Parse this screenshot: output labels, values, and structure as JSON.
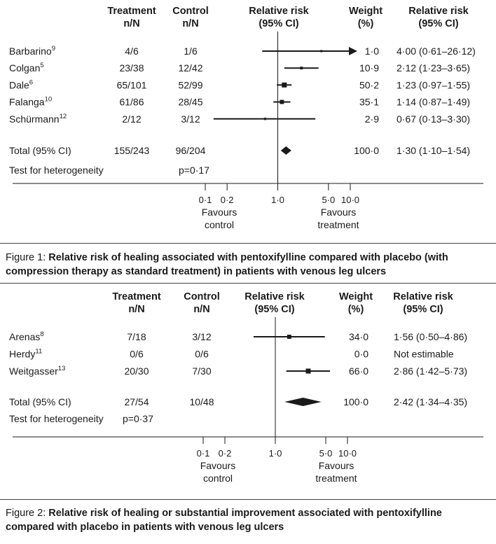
{
  "columns": {
    "study": "",
    "treatment": [
      "Treatment",
      "n/N"
    ],
    "control": [
      "Control",
      "n/N"
    ],
    "rr_axis": [
      "Relative risk",
      "(95% CI)"
    ],
    "weight": [
      "Weight",
      "(%)"
    ],
    "rr_text": [
      "Relative risk",
      "(95% CI)"
    ]
  },
  "chart_data": [
    {
      "type": "forest",
      "x_scale": "log",
      "xlim": [
        0.1,
        10.0
      ],
      "x_ticks": [
        {
          "value": 0.1,
          "label": "0·1"
        },
        {
          "value": 0.2,
          "label": "0·2"
        },
        {
          "value": 1.0,
          "label": "1·0"
        },
        {
          "value": 5.0,
          "label": "5·0"
        },
        {
          "value": 10.0,
          "label": "10·0"
        }
      ],
      "favours_left": [
        "Favours",
        "control"
      ],
      "favours_right": [
        "Favours",
        "treatment"
      ],
      "studies": [
        {
          "name": "Barbarino",
          "ref": "9",
          "treatment": "4/6",
          "control": "1/6",
          "rr": 4.0,
          "lo": 0.61,
          "hi": 26.12,
          "arrow": true,
          "weight": "1·0",
          "rr_text": "4·00 (0·61–26·12)"
        },
        {
          "name": "Colgan",
          "ref": "5",
          "treatment": "23/38",
          "control": "12/42",
          "rr": 2.12,
          "lo": 1.23,
          "hi": 3.65,
          "weight": "10·9",
          "rr_text": "2·12 (1·23–3·65)"
        },
        {
          "name": "Dale",
          "ref": "6",
          "treatment": "65/101",
          "control": "52/99",
          "rr": 1.23,
          "lo": 0.97,
          "hi": 1.55,
          "weight": "50·2",
          "rr_text": "1·23 (0·97–1·55)"
        },
        {
          "name": "Falanga",
          "ref": "10",
          "treatment": "61/86",
          "control": "28/45",
          "rr": 1.14,
          "lo": 0.87,
          "hi": 1.49,
          "weight": "35·1",
          "rr_text": "1·14 (0·87–1·49)"
        },
        {
          "name": "Schürmann",
          "ref": "12",
          "treatment": "2/12",
          "control": "3/12",
          "rr": 0.67,
          "lo": 0.13,
          "hi": 3.3,
          "weight": "2·9",
          "rr_text": "0·67 (0·13–3·30)"
        }
      ],
      "total": {
        "name": "Total (95% CI)",
        "treatment": "155/243",
        "control": "96/204",
        "rr": 1.3,
        "lo": 1.1,
        "hi": 1.54,
        "weight": "100·0",
        "rr_text": "1·30 (1·10–1·54)"
      },
      "heterogeneity": {
        "label": "Test for heterogeneity",
        "value": "p=0·17"
      },
      "caption_prefix": "Figure 1: ",
      "caption_bold": "Relative risk of healing associated with pentoxifylline compared with placebo (with compression therapy as standard treatment) in patients with venous leg ulcers"
    },
    {
      "type": "forest",
      "x_scale": "log",
      "xlim": [
        0.1,
        10.0
      ],
      "x_ticks": [
        {
          "value": 0.1,
          "label": "0·1"
        },
        {
          "value": 0.2,
          "label": "0·2"
        },
        {
          "value": 1.0,
          "label": "1·0"
        },
        {
          "value": 5.0,
          "label": "5·0"
        },
        {
          "value": 10.0,
          "label": "10·0"
        }
      ],
      "favours_left": [
        "Favours",
        "control"
      ],
      "favours_right": [
        "Favours",
        "treatment"
      ],
      "studies": [
        {
          "name": "Arenas",
          "ref": "8",
          "treatment": "7/18",
          "control": "3/12",
          "rr": 1.56,
          "lo": 0.5,
          "hi": 4.86,
          "weight": "34·0",
          "rr_text": "1·56 (0·50–4·86)"
        },
        {
          "name": "Herdy",
          "ref": "11",
          "treatment": "0/6",
          "control": "0/6",
          "rr": null,
          "lo": null,
          "hi": null,
          "weight": "0·0",
          "rr_text": "Not estimable"
        },
        {
          "name": "Weitgasser",
          "ref": "13",
          "treatment": "20/30",
          "control": "7/30",
          "rr": 2.86,
          "lo": 1.42,
          "hi": 5.73,
          "weight": "66·0",
          "rr_text": "2·86 (1·42–5·73)"
        }
      ],
      "total": {
        "name": "Total (95% CI)",
        "treatment": "27/54",
        "control": "10/48",
        "rr": 2.42,
        "lo": 1.34,
        "hi": 4.35,
        "weight": "100·0",
        "rr_text": "2·42 (1·34–4·35)"
      },
      "heterogeneity": {
        "label": "Test for heterogeneity",
        "value": "p=0·37"
      },
      "caption_prefix": "Figure 2: ",
      "caption_bold": "Relative risk of healing or substantial improvement associated with pentoxifylline compared with placebo in patients with venous leg ulcers"
    }
  ]
}
